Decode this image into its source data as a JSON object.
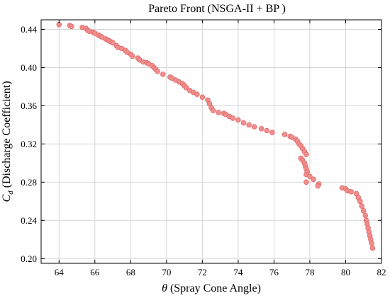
{
  "chart_data": {
    "type": "scatter",
    "title": "Pareto Front (NSGA-II + BP )",
    "xlabel_symbol": "θ",
    "xlabel_text": " (Spray Cone Angle)",
    "ylabel_symbol": "C",
    "ylabel_sub": "d",
    "ylabel_text": " (Discharge Coefficient)",
    "xlim": [
      63,
      82
    ],
    "ylim": [
      0.195,
      0.45
    ],
    "xticks": [
      64,
      66,
      68,
      70,
      72,
      74,
      76,
      78,
      80,
      82
    ],
    "xtick_labels": [
      "64",
      "66",
      "68",
      "70",
      "72",
      "74",
      "76",
      "78",
      "80",
      "82"
    ],
    "yticks": [
      0.2,
      0.24,
      0.28,
      0.32,
      0.36,
      0.4,
      0.44
    ],
    "ytick_labels": [
      "0.20",
      "0.24",
      "0.28",
      "0.32",
      "0.36",
      "0.40",
      "0.44"
    ],
    "grid": true,
    "marker_color": "#f08e8e",
    "marker_edge": "#e06a6a",
    "series": [
      {
        "points": [
          [
            64.0,
            0.445
          ],
          [
            64.6,
            0.444
          ],
          [
            64.7,
            0.443
          ],
          [
            65.3,
            0.442
          ],
          [
            65.5,
            0.441
          ],
          [
            65.6,
            0.439
          ],
          [
            65.7,
            0.438
          ],
          [
            65.9,
            0.437
          ],
          [
            66.0,
            0.436
          ],
          [
            66.2,
            0.434
          ],
          [
            66.3,
            0.433
          ],
          [
            66.4,
            0.432
          ],
          [
            66.6,
            0.43
          ],
          [
            66.7,
            0.429
          ],
          [
            66.8,
            0.428
          ],
          [
            66.9,
            0.427
          ],
          [
            67.0,
            0.426
          ],
          [
            67.2,
            0.423
          ],
          [
            67.3,
            0.421
          ],
          [
            67.5,
            0.42
          ],
          [
            67.7,
            0.418
          ],
          [
            67.8,
            0.416
          ],
          [
            68.0,
            0.414
          ],
          [
            68.1,
            0.412
          ],
          [
            68.4,
            0.41
          ],
          [
            68.5,
            0.408
          ],
          [
            68.7,
            0.406
          ],
          [
            68.9,
            0.405
          ],
          [
            69.0,
            0.404
          ],
          [
            69.2,
            0.402
          ],
          [
            69.3,
            0.4
          ],
          [
            69.4,
            0.398
          ],
          [
            69.5,
            0.396
          ],
          [
            69.8,
            0.393
          ],
          [
            70.2,
            0.39
          ],
          [
            70.3,
            0.389
          ],
          [
            70.5,
            0.387
          ],
          [
            70.7,
            0.385
          ],
          [
            70.9,
            0.383
          ],
          [
            71.0,
            0.381
          ],
          [
            71.1,
            0.379
          ],
          [
            71.3,
            0.376
          ],
          [
            71.5,
            0.374
          ],
          [
            71.7,
            0.372
          ],
          [
            72.0,
            0.369
          ],
          [
            72.3,
            0.366
          ],
          [
            72.4,
            0.362
          ],
          [
            72.5,
            0.358
          ],
          [
            72.6,
            0.355
          ],
          [
            72.9,
            0.353
          ],
          [
            73.2,
            0.352
          ],
          [
            73.3,
            0.351
          ],
          [
            73.5,
            0.349
          ],
          [
            73.7,
            0.347
          ],
          [
            74.0,
            0.345
          ],
          [
            74.3,
            0.342
          ],
          [
            74.6,
            0.34
          ],
          [
            74.9,
            0.338
          ],
          [
            75.3,
            0.336
          ],
          [
            75.6,
            0.334
          ],
          [
            75.9,
            0.332
          ],
          [
            76.6,
            0.33
          ],
          [
            76.9,
            0.328
          ],
          [
            77.0,
            0.327
          ],
          [
            77.2,
            0.325
          ],
          [
            77.3,
            0.323
          ],
          [
            77.4,
            0.32
          ],
          [
            77.5,
            0.318
          ],
          [
            77.6,
            0.315
          ],
          [
            77.7,
            0.312
          ],
          [
            77.8,
            0.309
          ],
          [
            77.5,
            0.305
          ],
          [
            77.6,
            0.303
          ],
          [
            77.7,
            0.3
          ],
          [
            77.75,
            0.297
          ],
          [
            77.8,
            0.294
          ],
          [
            77.85,
            0.291
          ],
          [
            77.8,
            0.288
          ],
          [
            78.0,
            0.286
          ],
          [
            78.2,
            0.283
          ],
          [
            77.8,
            0.28
          ],
          [
            78.5,
            0.278
          ],
          [
            78.45,
            0.276
          ],
          [
            79.8,
            0.274
          ],
          [
            80.0,
            0.273
          ],
          [
            80.1,
            0.271
          ],
          [
            80.3,
            0.27
          ],
          [
            80.6,
            0.268
          ],
          [
            80.7,
            0.264
          ],
          [
            80.8,
            0.26
          ],
          [
            80.9,
            0.255
          ],
          [
            81.0,
            0.25
          ],
          [
            81.1,
            0.245
          ],
          [
            81.15,
            0.24
          ],
          [
            81.2,
            0.236
          ],
          [
            81.25,
            0.232
          ],
          [
            81.3,
            0.228
          ],
          [
            81.35,
            0.224
          ],
          [
            81.4,
            0.22
          ],
          [
            81.45,
            0.216
          ],
          [
            81.5,
            0.211
          ]
        ]
      }
    ]
  }
}
